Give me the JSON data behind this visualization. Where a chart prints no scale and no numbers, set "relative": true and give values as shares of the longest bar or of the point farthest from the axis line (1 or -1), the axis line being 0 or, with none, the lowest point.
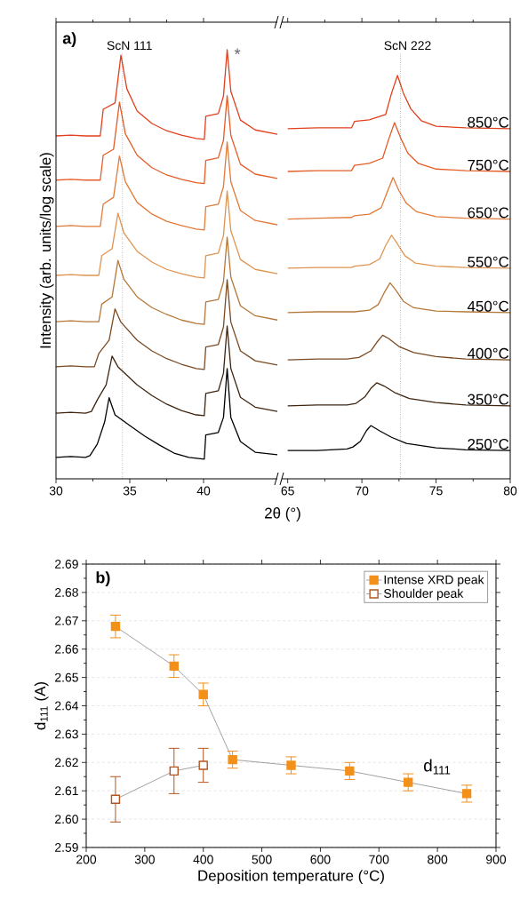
{
  "chart_data": [
    {
      "type": "line",
      "title": "a)",
      "xlabel": "2θ (°)",
      "ylabel": "Intensity (arb. units/log scale)",
      "relative": true,
      "xlim": [
        30,
        45
      ],
      "xticks": [
        30,
        35,
        40
      ],
      "ref_lines": [
        {
          "axis": "x",
          "value": 34.5,
          "label": "ScN 111",
          "color": "#000000",
          "line_style": "dotted"
        }
      ],
      "annotations": [
        "*"
      ],
      "series": [
        {
          "color": "#e0401c",
          "x": [
            30,
            31,
            32,
            33.0,
            33.2,
            34.0,
            34.4,
            34.8,
            35.5,
            36.5,
            37.5,
            38.5,
            39.5,
            40.05,
            40.15,
            41,
            41.35,
            41.6,
            41.85,
            42.5,
            43.5,
            45
          ],
          "values": [
            0.799,
            0.801,
            0.799,
            0.799,
            0.861,
            0.876,
            0.987,
            0.909,
            0.857,
            0.828,
            0.811,
            0.801,
            0.793,
            0.791,
            0.845,
            0.851,
            0.892,
            1.0,
            0.903,
            0.836,
            0.813,
            0.803
          ]
        },
        {
          "color": "#e45c26",
          "x": [
            30,
            31,
            32,
            33.0,
            33.2,
            33.9,
            34.3,
            34.7,
            35.5,
            36.5,
            37.5,
            38.5,
            39.5,
            40.05,
            40.15,
            41,
            41.35,
            41.6,
            41.85,
            42.5,
            43.5,
            45
          ],
          "values": [
            0.696,
            0.698,
            0.696,
            0.696,
            0.754,
            0.768,
            0.878,
            0.804,
            0.754,
            0.725,
            0.708,
            0.698,
            0.69,
            0.688,
            0.742,
            0.748,
            0.789,
            0.893,
            0.8,
            0.733,
            0.71,
            0.7
          ]
        },
        {
          "color": "#e27a38",
          "x": [
            30,
            31,
            32,
            33.0,
            33.2,
            33.9,
            34.3,
            34.7,
            35.5,
            36.5,
            37.5,
            38.5,
            39.5,
            40.05,
            40.15,
            41,
            41.35,
            41.6,
            41.85,
            42.5,
            43.5,
            45
          ],
          "values": [
            0.588,
            0.59,
            0.588,
            0.588,
            0.64,
            0.656,
            0.752,
            0.692,
            0.644,
            0.617,
            0.6,
            0.59,
            0.582,
            0.58,
            0.634,
            0.64,
            0.681,
            0.785,
            0.692,
            0.625,
            0.602,
            0.592
          ]
        },
        {
          "color": "#de9450",
          "x": [
            30,
            31,
            32,
            32.9,
            33.1,
            33.8,
            34.2,
            34.6,
            35.5,
            36.5,
            37.5,
            38.5,
            39.5,
            40.05,
            40.15,
            41,
            41.35,
            41.6,
            41.85,
            42.5,
            43.5,
            45
          ],
          "values": [
            0.474,
            0.476,
            0.474,
            0.474,
            0.52,
            0.536,
            0.619,
            0.573,
            0.53,
            0.505,
            0.488,
            0.478,
            0.47,
            0.468,
            0.52,
            0.526,
            0.567,
            0.671,
            0.578,
            0.511,
            0.488,
            0.478
          ]
        },
        {
          "color": "#b47838",
          "x": [
            30,
            31,
            32,
            32.9,
            33.1,
            33.8,
            34.2,
            34.6,
            35.5,
            36.5,
            37.5,
            38.5,
            39.5,
            40.05,
            40.15,
            41,
            41.35,
            41.6,
            41.85,
            42.5,
            43.5,
            45
          ],
          "values": [
            0.366,
            0.368,
            0.366,
            0.366,
            0.407,
            0.424,
            0.509,
            0.465,
            0.424,
            0.399,
            0.383,
            0.37,
            0.362,
            0.36,
            0.412,
            0.418,
            0.459,
            0.563,
            0.47,
            0.403,
            0.38,
            0.37
          ]
        },
        {
          "color": "#7a4a22",
          "x": [
            30,
            31,
            32,
            32.6,
            32.9,
            33.6,
            34.0,
            34.4,
            35.5,
            36.5,
            37.5,
            38.5,
            39.5,
            40.05,
            40.15,
            41,
            41.35,
            41.6,
            41.85,
            42.5,
            43.5,
            45
          ],
          "values": [
            0.261,
            0.263,
            0.261,
            0.261,
            0.292,
            0.323,
            0.396,
            0.365,
            0.323,
            0.298,
            0.28,
            0.267,
            0.257,
            0.255,
            0.307,
            0.313,
            0.354,
            0.464,
            0.365,
            0.298,
            0.275,
            0.265
          ]
        },
        {
          "color": "#3e2510",
          "x": [
            30,
            31,
            32,
            32.4,
            32.8,
            33.4,
            33.8,
            34.2,
            35.5,
            36.5,
            37.5,
            38.5,
            39.5,
            40.05,
            40.15,
            41,
            41.35,
            41.6,
            41.85,
            42.5,
            43.5,
            45
          ],
          "values": [
            0.153,
            0.155,
            0.153,
            0.157,
            0.184,
            0.219,
            0.286,
            0.261,
            0.219,
            0.194,
            0.174,
            0.159,
            0.149,
            0.147,
            0.199,
            0.205,
            0.246,
            0.356,
            0.257,
            0.19,
            0.167,
            0.157
          ]
        },
        {
          "color": "#000000",
          "x": [
            30,
            31,
            32,
            32.3,
            32.8,
            33.3,
            33.6,
            34.0,
            35,
            36,
            37,
            38,
            39,
            40.05,
            40.15,
            41,
            41.35,
            41.6,
            41.85,
            42.5,
            43.5,
            45
          ],
          "values": [
            0.05,
            0.052,
            0.05,
            0.054,
            0.081,
            0.133,
            0.189,
            0.149,
            0.124,
            0.1,
            0.079,
            0.06,
            0.05,
            0.046,
            0.102,
            0.108,
            0.143,
            0.257,
            0.143,
            0.087,
            0.062,
            0.056
          ]
        }
      ]
    },
    {
      "type": "line",
      "relative": true,
      "xlim": [
        64.6,
        80
      ],
      "xticks": [
        65,
        70,
        75,
        80
      ],
      "ref_lines": [
        {
          "axis": "x",
          "value": 72.6,
          "label": "ScN 222",
          "color": "#000000",
          "line_style": "dotted"
        }
      ],
      "series": [
        {
          "name": "850°C",
          "color": "#e0401c",
          "x": [
            65,
            67,
            69.3,
            69.5,
            70.5,
            71.6,
            72.0,
            72.4,
            72.8,
            73.3,
            74.0,
            75,
            77,
            80
          ],
          "values": [
            0.868,
            0.87,
            0.87,
            0.886,
            0.89,
            0.903,
            0.956,
            1.0,
            0.956,
            0.917,
            0.888,
            0.874,
            0.87,
            0.868
          ]
        },
        {
          "name": "750°C",
          "color": "#e45c26",
          "x": [
            65,
            67,
            69.3,
            69.5,
            70.5,
            71.4,
            71.8,
            72.2,
            72.6,
            73.1,
            73.8,
            75,
            77,
            80
          ],
          "values": [
            0.762,
            0.764,
            0.764,
            0.777,
            0.782,
            0.795,
            0.841,
            0.883,
            0.846,
            0.807,
            0.782,
            0.768,
            0.764,
            0.762
          ]
        },
        {
          "name": "650°C",
          "color": "#e27a38",
          "x": [
            65,
            67,
            69.3,
            69.5,
            70.5,
            71.3,
            71.7,
            72.1,
            72.5,
            73.0,
            73.7,
            75,
            77,
            80
          ],
          "values": [
            0.644,
            0.646,
            0.648,
            0.652,
            0.656,
            0.672,
            0.71,
            0.747,
            0.714,
            0.683,
            0.662,
            0.65,
            0.646,
            0.644
          ]
        },
        {
          "name": "550°C",
          "color": "#de9450",
          "x": [
            65,
            67,
            69.3,
            69.5,
            70.5,
            71.2,
            71.6,
            72.0,
            72.4,
            72.9,
            73.6,
            75,
            77,
            80
          ],
          "values": [
            0.522,
            0.524,
            0.524,
            0.527,
            0.531,
            0.545,
            0.578,
            0.604,
            0.582,
            0.553,
            0.535,
            0.527,
            0.524,
            0.522
          ]
        },
        {
          "name": "450°C",
          "color": "#b47838",
          "x": [
            65,
            67,
            69.3,
            69.5,
            70.5,
            71.1,
            71.5,
            71.9,
            72.3,
            72.8,
            73.5,
            75,
            77,
            80
          ],
          "values": [
            0.412,
            0.414,
            0.414,
            0.414,
            0.418,
            0.432,
            0.461,
            0.486,
            0.467,
            0.44,
            0.424,
            0.416,
            0.414,
            0.412
          ]
        },
        {
          "name": "400°C",
          "color": "#7a4a22",
          "x": [
            65,
            67,
            69.0,
            69.8,
            70.6,
            71.0,
            71.4,
            71.8,
            72.5,
            73.5,
            75,
            77,
            80
          ],
          "values": [
            0.295,
            0.297,
            0.297,
            0.301,
            0.317,
            0.338,
            0.356,
            0.348,
            0.328,
            0.313,
            0.303,
            0.297,
            0.295
          ]
        },
        {
          "name": "350°C",
          "color": "#3e2510",
          "x": [
            65,
            67,
            69.0,
            69.6,
            70.2,
            70.6,
            71.0,
            71.5,
            72.2,
            73.2,
            75,
            77,
            80
          ],
          "values": [
            0.181,
            0.183,
            0.183,
            0.187,
            0.203,
            0.224,
            0.238,
            0.23,
            0.214,
            0.199,
            0.189,
            0.183,
            0.181
          ]
        },
        {
          "name": "250°C",
          "color": "#000000",
          "x": [
            65,
            67,
            69.0,
            69.4,
            69.9,
            70.3,
            70.6,
            71.2,
            72.0,
            73.0,
            75,
            77,
            80
          ],
          "values": [
            0.07,
            0.07,
            0.074,
            0.079,
            0.093,
            0.119,
            0.132,
            0.119,
            0.103,
            0.088,
            0.077,
            0.072,
            0.07
          ]
        }
      ]
    },
    {
      "type": "line",
      "title": "b)",
      "xlabel": "Deposition temperature (°C)",
      "ylabel": "d$_{111}$ (A)",
      "xlim": [
        200,
        900
      ],
      "xticks": [
        200,
        300,
        400,
        500,
        600,
        700,
        800,
        900
      ],
      "ylim": [
        2.59,
        2.69
      ],
      "yticks": [
        2.59,
        {
          "value": 2.6,
          "label": "2.60"
        },
        2.61,
        2.62,
        2.63,
        2.64,
        2.65,
        2.66,
        2.67,
        2.68,
        2.69
      ],
      "grid": "y",
      "legend": "top right",
      "marker": "square",
      "annotations": [
        "d$_{111}$"
      ],
      "series": [
        {
          "name": "Intense XRD peak",
          "color": "#f39019",
          "x": [
            250,
            350,
            400,
            450,
            550,
            650,
            750,
            850
          ],
          "values": [
            2.668,
            2.654,
            2.644,
            2.621,
            2.619,
            2.617,
            2.613,
            2.609
          ],
          "errors": [
            0.004,
            0.004,
            0.004,
            0.003,
            0.003,
            0.003,
            0.003,
            0.003
          ]
        },
        {
          "name": "Shoulder peak",
          "color": "#b4541e",
          "x": [
            250,
            350,
            400
          ],
          "values": [
            2.607,
            2.617,
            2.619
          ],
          "errors": [
            0.008,
            0.008,
            0.006
          ]
        }
      ]
    }
  ]
}
